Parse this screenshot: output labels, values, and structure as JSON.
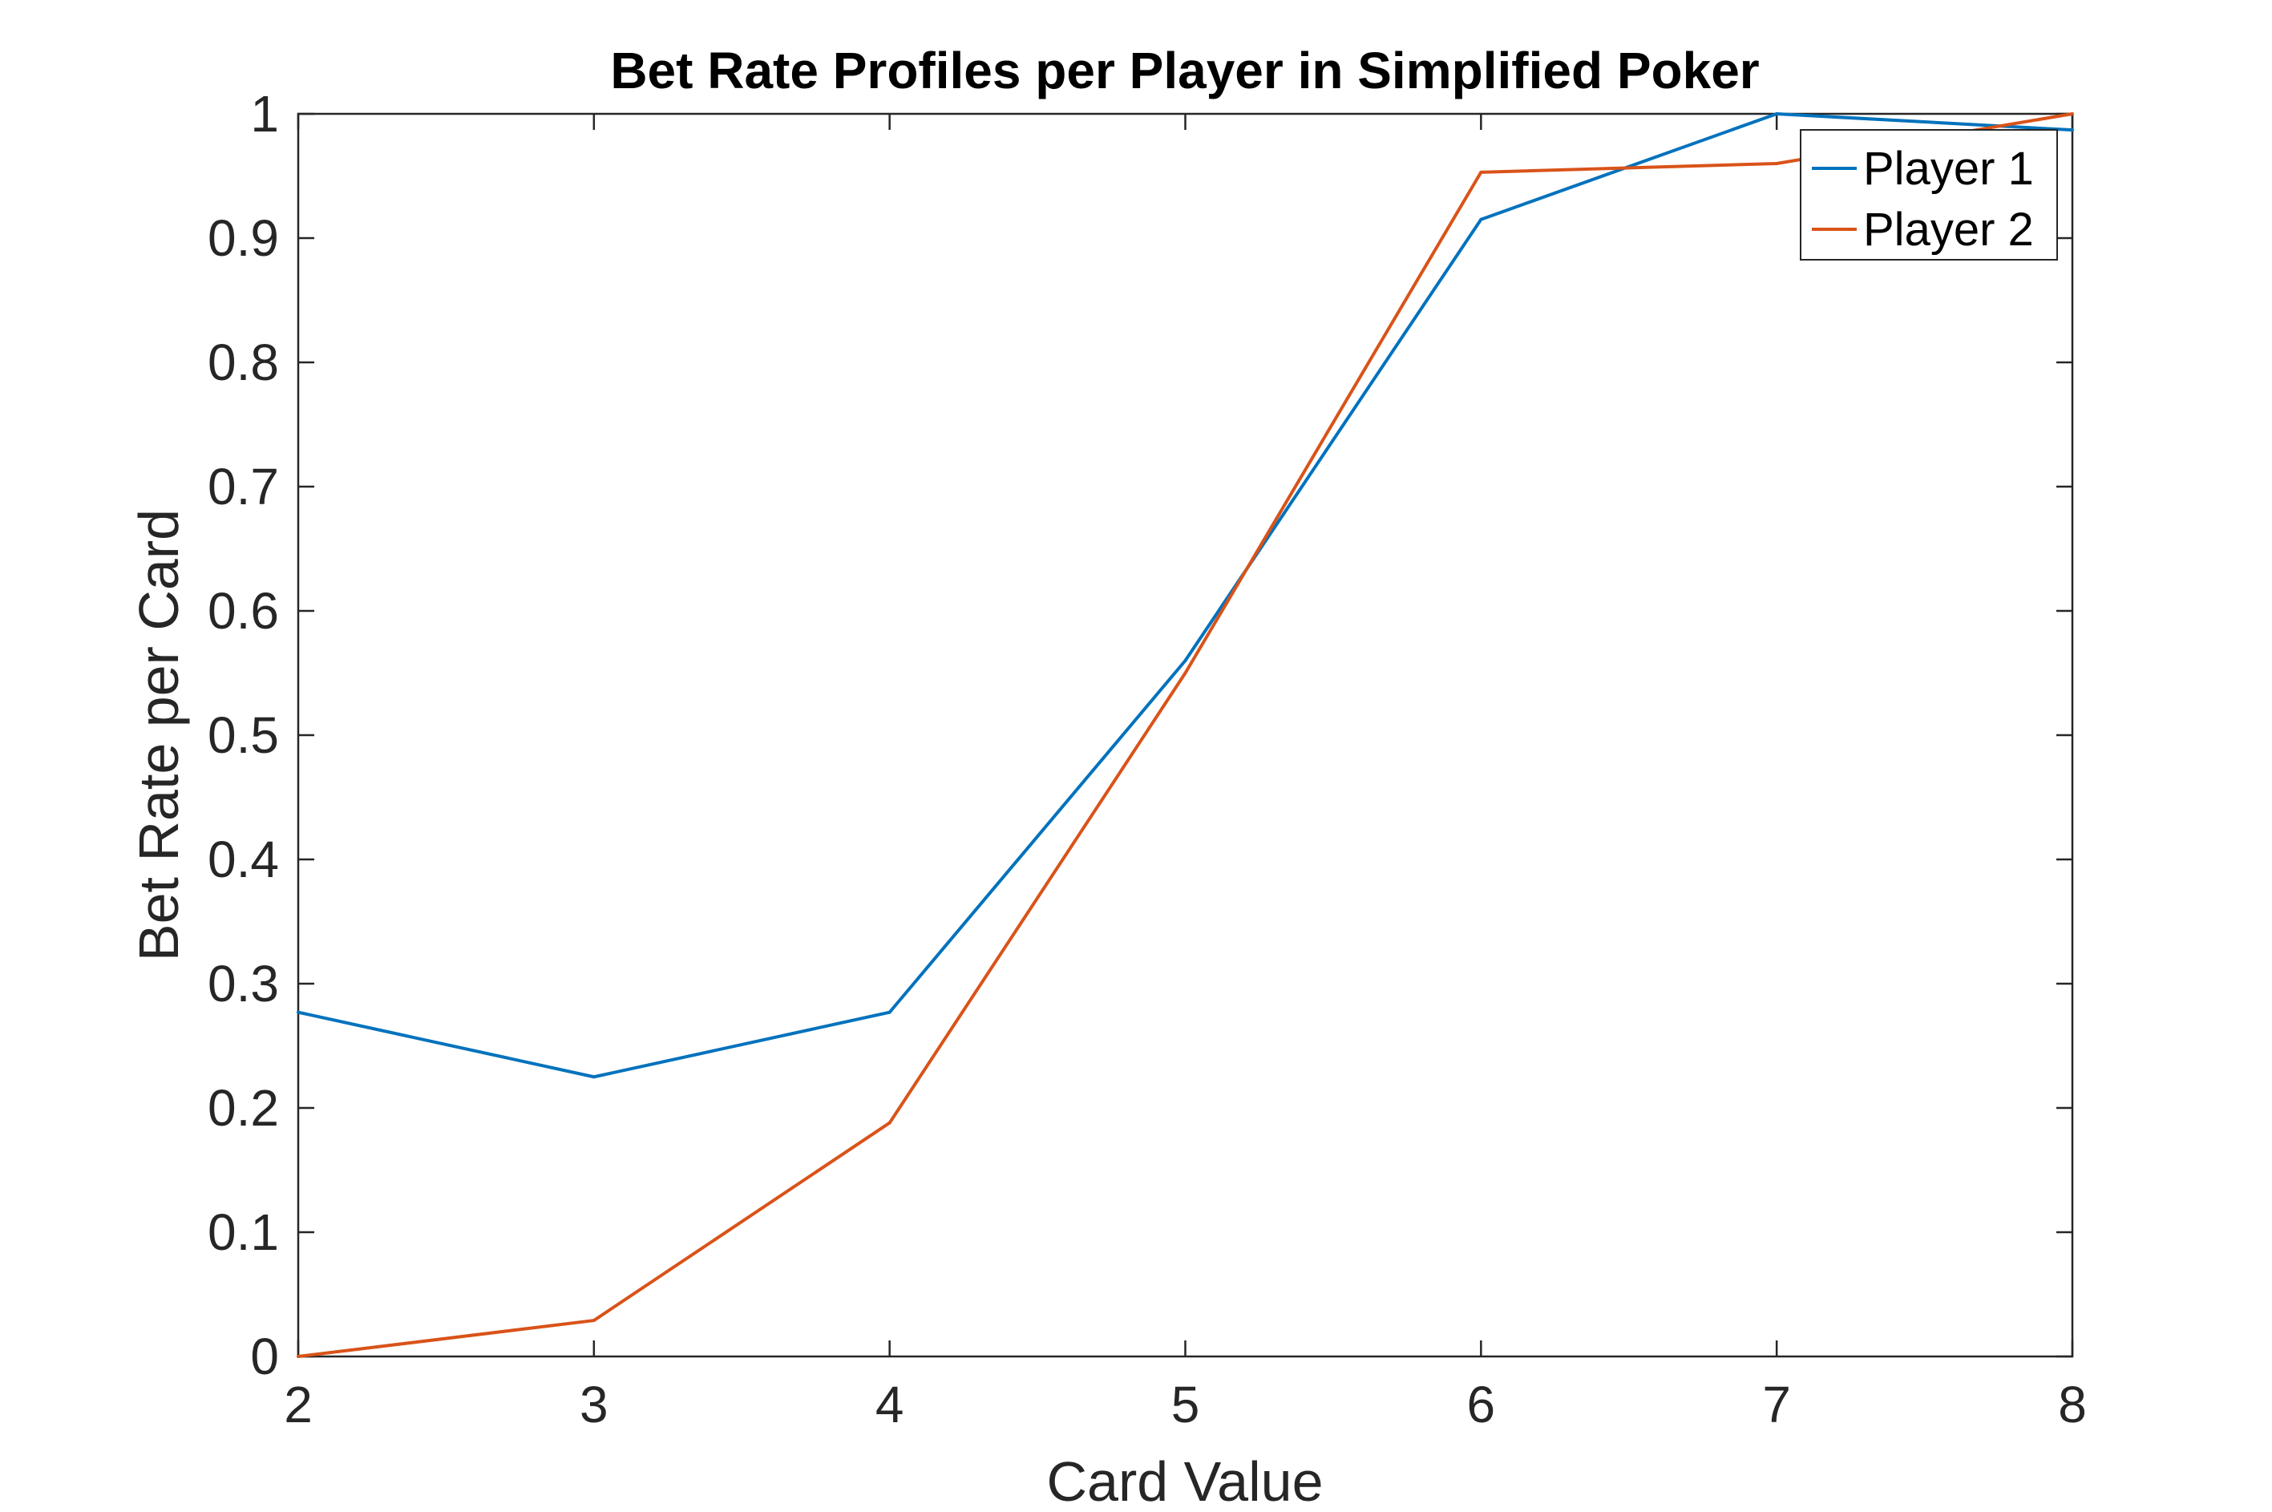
{
  "chart_data": {
    "type": "line",
    "title": "Bet Rate Profiles per Player in Simplified Poker",
    "xlabel": "Card Value",
    "ylabel": "Bet Rate per Card",
    "xlim": [
      2,
      8
    ],
    "ylim": [
      0,
      1
    ],
    "x_ticks": [
      "2",
      "3",
      "4",
      "5",
      "6",
      "7",
      "8"
    ],
    "y_ticks": [
      "0",
      "0.1",
      "0.2",
      "0.3",
      "0.4",
      "0.5",
      "0.6",
      "0.7",
      "0.8",
      "0.9",
      "1"
    ],
    "x": [
      2,
      3,
      4,
      5,
      6,
      7,
      8
    ],
    "series": [
      {
        "name": "Player 1",
        "color": "#0072BD",
        "values": [
          0.277,
          0.225,
          0.277,
          0.56,
          0.915,
          1.0,
          0.987
        ]
      },
      {
        "name": "Player 2",
        "color": "#D95319",
        "values": [
          0.0,
          0.029,
          0.188,
          0.55,
          0.953,
          0.96,
          1.0
        ]
      }
    ],
    "grid": false,
    "legend_position": "top-right"
  }
}
